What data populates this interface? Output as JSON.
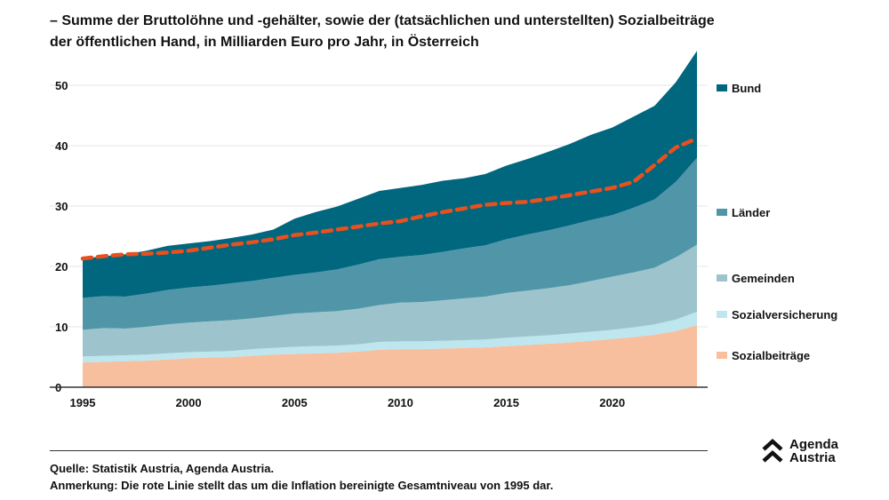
{
  "title_lines": [
    "– Summe der Bruttolöhne und -gehälter, sowie der (tatsächlichen und unterstellten) Sozialbeiträge",
    "der öffentlichen Hand, in Milliarden Euro pro Jahr, in Österreich"
  ],
  "footer": {
    "source": "Quelle: Statistik Austria, Agenda Austria.",
    "note": "Anmerkung: Die rote Linie stellt das um die Inflation bereinigte Gesamtniveau von 1995 dar."
  },
  "logo": {
    "text_line1": "Agenda",
    "text_line2": "Austria",
    "icon": "double-chevron-up-icon"
  },
  "chart_data": {
    "type": "area",
    "stacked": true,
    "title": "",
    "xlabel": "",
    "ylabel": "",
    "ylim": [
      0,
      56
    ],
    "yticks": [
      0,
      10,
      20,
      30,
      40,
      50
    ],
    "xticks": [
      1995,
      2000,
      2005,
      2010,
      2015,
      2020
    ],
    "grid": "horizontal",
    "legend_placement": "right",
    "x": [
      1995,
      1996,
      1997,
      1998,
      1999,
      2000,
      2001,
      2002,
      2003,
      2004,
      2005,
      2006,
      2007,
      2008,
      2009,
      2010,
      2011,
      2012,
      2013,
      2014,
      2015,
      2016,
      2017,
      2018,
      2019,
      2020,
      2021,
      2022,
      2023,
      2024
    ],
    "series": [
      {
        "name": "Sozialbeiträge",
        "color": "#f7bf9e",
        "values": [
          4.1,
          4.2,
          4.3,
          4.4,
          4.6,
          4.8,
          4.9,
          5.0,
          5.2,
          5.4,
          5.5,
          5.6,
          5.7,
          5.9,
          6.2,
          6.3,
          6.3,
          6.4,
          6.5,
          6.6,
          6.8,
          7.0,
          7.2,
          7.4,
          7.7,
          8.0,
          8.3,
          8.7,
          9.3,
          10.3
        ]
      },
      {
        "name": "Sozialversicherung",
        "color": "#bde6ee",
        "values": [
          1.0,
          1.0,
          1.0,
          1.0,
          1.0,
          1.0,
          1.0,
          1.0,
          1.1,
          1.1,
          1.2,
          1.2,
          1.2,
          1.2,
          1.3,
          1.3,
          1.3,
          1.3,
          1.3,
          1.3,
          1.4,
          1.4,
          1.4,
          1.5,
          1.5,
          1.5,
          1.6,
          1.7,
          1.9,
          2.2
        ]
      },
      {
        "name": "Gemeinden",
        "color": "#9dc4cd",
        "values": [
          4.4,
          4.6,
          4.4,
          4.6,
          4.8,
          4.9,
          5.0,
          5.1,
          5.1,
          5.3,
          5.5,
          5.6,
          5.7,
          5.9,
          6.1,
          6.4,
          6.5,
          6.7,
          6.9,
          7.1,
          7.4,
          7.6,
          7.8,
          8.0,
          8.4,
          8.8,
          9.1,
          9.4,
          10.3,
          11.1
        ]
      },
      {
        "name": "Länder",
        "color": "#5096a8",
        "values": [
          5.3,
          5.3,
          5.3,
          5.5,
          5.7,
          5.8,
          5.9,
          6.1,
          6.2,
          6.3,
          6.4,
          6.6,
          6.9,
          7.3,
          7.6,
          7.6,
          7.8,
          8.0,
          8.3,
          8.5,
          8.9,
          9.3,
          9.6,
          9.9,
          10.1,
          10.2,
          10.7,
          11.3,
          12.5,
          14.4
        ]
      },
      {
        "name": "Bund",
        "color": "#00677f",
        "values": [
          6.5,
          6.6,
          7.0,
          7.1,
          7.3,
          7.3,
          7.4,
          7.5,
          7.7,
          8.0,
          9.3,
          10.0,
          10.4,
          10.9,
          11.3,
          11.4,
          11.6,
          11.8,
          11.6,
          11.8,
          12.2,
          12.5,
          13.0,
          13.5,
          14.1,
          14.5,
          15.1,
          15.5,
          16.5,
          17.7
        ]
      }
    ],
    "line": {
      "description_ref": "footer.note",
      "color": "#e8501e",
      "style": "dashed",
      "values": [
        21.3,
        21.7,
        22.0,
        22.1,
        22.3,
        22.6,
        23.1,
        23.6,
        24.0,
        24.5,
        25.2,
        25.6,
        26.1,
        26.6,
        27.1,
        27.5,
        28.3,
        29.0,
        29.6,
        30.2,
        30.5,
        30.7,
        31.2,
        31.8,
        32.4,
        33.0,
        34.0,
        36.8,
        39.7,
        41.2
      ]
    }
  }
}
